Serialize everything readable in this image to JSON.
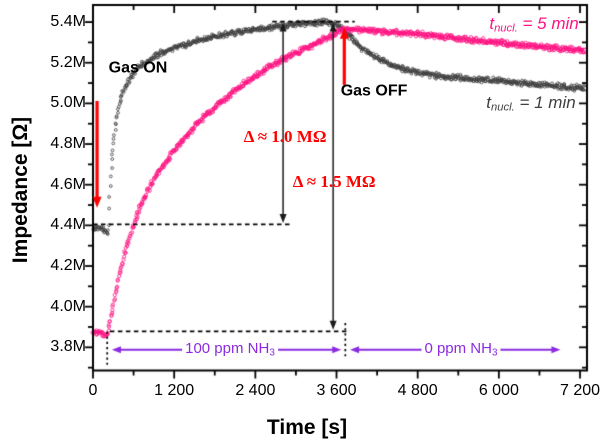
{
  "chart_data": {
    "type": "scatter",
    "title": "",
    "xlabel": "Time [s]",
    "ylabel": "Impedance [Ω]",
    "xlim": [
      0,
      7303
    ],
    "ylim": [
      3.686,
      5.484
    ],
    "grid": false,
    "x_ticks": {
      "values": [
        0,
        1200,
        2400,
        3600,
        4800,
        6000,
        7200
      ],
      "labels": [
        "0",
        "1 200",
        "2 400",
        "3 600",
        "4 800",
        "6 000",
        "7 200"
      ],
      "minor": [
        600,
        1800,
        3000,
        4200,
        5400,
        6600
      ]
    },
    "y_ticks": {
      "values": [
        3.8,
        4.0,
        4.2,
        4.4,
        4.6,
        4.8,
        5.0,
        5.2,
        5.4
      ],
      "labels": [
        "3.8M",
        "4.0M",
        "4.2M",
        "4.4M",
        "4.6M",
        "4.8M",
        "5.0M",
        "5.2M",
        "5.4M"
      ],
      "minor": [
        3.7,
        3.9,
        4.1,
        4.3,
        4.5,
        4.7,
        4.9,
        5.1,
        5.3
      ]
    },
    "units": {
      "impedance": "MΩ",
      "time": "s"
    },
    "series": [
      {
        "name": "t_nucl. = 1 min",
        "color": "#3F3F3F",
        "marker": "open-circle",
        "points": [
          [
            0,
            4.385
          ],
          [
            100,
            4.384
          ],
          [
            160,
            4.38
          ],
          [
            200,
            4.37
          ],
          [
            215,
            4.355
          ],
          [
            230,
            4.4
          ],
          [
            245,
            4.52
          ],
          [
            260,
            4.62
          ],
          [
            280,
            4.72
          ],
          [
            305,
            4.81
          ],
          [
            335,
            4.89
          ],
          [
            370,
            4.96
          ],
          [
            410,
            5.02
          ],
          [
            460,
            5.07
          ],
          [
            520,
            5.11
          ],
          [
            590,
            5.145
          ],
          [
            670,
            5.175
          ],
          [
            760,
            5.2
          ],
          [
            860,
            5.22
          ],
          [
            980,
            5.243
          ],
          [
            1120,
            5.263
          ],
          [
            1280,
            5.282
          ],
          [
            1450,
            5.3
          ],
          [
            1650,
            5.318
          ],
          [
            1850,
            5.332
          ],
          [
            2050,
            5.345
          ],
          [
            2250,
            5.357
          ],
          [
            2450,
            5.367
          ],
          [
            2650,
            5.377
          ],
          [
            2850,
            5.385
          ],
          [
            3050,
            5.391
          ],
          [
            3250,
            5.396
          ],
          [
            3400,
            5.398
          ],
          [
            3550,
            5.392
          ],
          [
            3620,
            5.386
          ],
          [
            3700,
            5.36
          ],
          [
            3800,
            5.33
          ],
          [
            3900,
            5.295
          ],
          [
            4000,
            5.265
          ],
          [
            4100,
            5.243
          ],
          [
            4250,
            5.215
          ],
          [
            4400,
            5.19
          ],
          [
            4550,
            5.172
          ],
          [
            4750,
            5.155
          ],
          [
            4950,
            5.143
          ],
          [
            5150,
            5.134
          ],
          [
            5350,
            5.128
          ],
          [
            5550,
            5.122
          ],
          [
            5750,
            5.117
          ],
          [
            5950,
            5.112
          ],
          [
            6150,
            5.106
          ],
          [
            6350,
            5.1
          ],
          [
            6550,
            5.094
          ],
          [
            6750,
            5.088
          ],
          [
            6950,
            5.082
          ],
          [
            7150,
            5.077
          ],
          [
            7260,
            5.074
          ]
        ]
      },
      {
        "name": "t_nucl. = 5 min",
        "color": "#FF1483",
        "marker": "open-circle",
        "points": [
          [
            0,
            3.872
          ],
          [
            80,
            3.871
          ],
          [
            130,
            3.868
          ],
          [
            180,
            3.853
          ],
          [
            210,
            3.865
          ],
          [
            240,
            3.91
          ],
          [
            280,
            3.97
          ],
          [
            320,
            4.04
          ],
          [
            360,
            4.11
          ],
          [
            410,
            4.18
          ],
          [
            460,
            4.25
          ],
          [
            520,
            4.32
          ],
          [
            580,
            4.385
          ],
          [
            650,
            4.45
          ],
          [
            730,
            4.515
          ],
          [
            820,
            4.575
          ],
          [
            920,
            4.635
          ],
          [
            1030,
            4.69
          ],
          [
            1150,
            4.745
          ],
          [
            1280,
            4.8
          ],
          [
            1420,
            4.855
          ],
          [
            1570,
            4.91
          ],
          [
            1730,
            4.96
          ],
          [
            1900,
            5.01
          ],
          [
            2070,
            5.055
          ],
          [
            2250,
            5.1
          ],
          [
            2430,
            5.14
          ],
          [
            2610,
            5.178
          ],
          [
            2790,
            5.212
          ],
          [
            2970,
            5.244
          ],
          [
            3150,
            5.273
          ],
          [
            3330,
            5.3
          ],
          [
            3480,
            5.325
          ],
          [
            3620,
            5.35
          ],
          [
            3720,
            5.362
          ],
          [
            3820,
            5.363
          ],
          [
            3950,
            5.36
          ],
          [
            4150,
            5.356
          ],
          [
            4350,
            5.352
          ],
          [
            4550,
            5.347
          ],
          [
            4750,
            5.342
          ],
          [
            4950,
            5.336
          ],
          [
            5150,
            5.329
          ],
          [
            5350,
            5.322
          ],
          [
            5550,
            5.314
          ],
          [
            5750,
            5.307
          ],
          [
            5950,
            5.3
          ],
          [
            6150,
            5.293
          ],
          [
            6350,
            5.286
          ],
          [
            6550,
            5.28
          ],
          [
            6750,
            5.274
          ],
          [
            6950,
            5.268
          ],
          [
            7150,
            5.262
          ],
          [
            7260,
            5.259
          ]
        ]
      }
    ],
    "dashed_lines": [
      {
        "name": "peak-level-dash",
        "style": "dash",
        "x1": 2650,
        "y1": 5.402,
        "x2": 3870,
        "y2": 5.402
      },
      {
        "name": "baseline-1min-dash",
        "style": "dash",
        "x1": 0,
        "y1": 4.405,
        "x2": 2950,
        "y2": 4.405
      },
      {
        "name": "baseline-5min-dash",
        "style": "dash",
        "x1": 250,
        "y1": 3.878,
        "x2": 3800,
        "y2": 3.878
      },
      {
        "name": "gas-on-time-dash",
        "style": "dot",
        "x1": 210,
        "y1": 3.878,
        "x2": 210,
        "y2": 3.7
      },
      {
        "name": "gas-off-time-dash",
        "style": "dot",
        "x1": 3730,
        "y1": 3.92,
        "x2": 3730,
        "y2": 3.745
      }
    ],
    "arrows": [
      {
        "name": "gas-on-arrow",
        "color": "#FF0000",
        "width": 3.2,
        "heads": "end",
        "x1": 60,
        "y1": 5.012,
        "x2": 60,
        "y2": 4.486
      },
      {
        "name": "gas-off-arrow",
        "color": "#FF0000",
        "width": 3.2,
        "heads": "end",
        "x1": 3715,
        "y1": 5.09,
        "x2": 3715,
        "y2": 5.372
      },
      {
        "name": "delta-1-arrow",
        "color": "#1A1A1A",
        "width": 1.5,
        "heads": "both",
        "x1": 2810,
        "y1": 5.398,
        "x2": 2810,
        "y2": 4.412
      },
      {
        "name": "delta-2-arrow",
        "color": "#1A1A1A",
        "width": 1.5,
        "heads": "both",
        "x1": 3550,
        "y1": 5.398,
        "x2": 3550,
        "y2": 3.886
      },
      {
        "name": "nh3-100-arrow",
        "color": "#8A2BE2",
        "width": 1.8,
        "heads": "both",
        "x1": 280,
        "y1": 3.788,
        "x2": 3670,
        "y2": 3.788
      },
      {
        "name": "nh3-0-arrow",
        "color": "#8A2BE2",
        "width": 1.8,
        "heads": "both",
        "x1": 3800,
        "y1": 3.788,
        "x2": 6910,
        "y2": 3.788
      }
    ],
    "labels": {
      "gas_on": {
        "text": "Gas ON",
        "x": 665,
        "y": 5.169,
        "color": "#000000"
      },
      "gas_off": {
        "text": "Gas OFF",
        "x": 4155,
        "y": 5.055,
        "color": "#000000"
      },
      "delta_1": {
        "text": "Δ ≈ 1.0 MΩ",
        "x": 2840,
        "y": 4.833,
        "color": "#FF0000"
      },
      "delta_2": {
        "text": "Δ ≈ 1.5 MΩ",
        "x": 3565,
        "y": 4.611,
        "color": "#FF0000"
      },
      "legend_5min": {
        "pre": "t",
        "sub": "nucl.",
        "post": " = 5 min",
        "x": 6520,
        "y": 5.388,
        "color": "#FF1483"
      },
      "legend_1min": {
        "pre": "t",
        "sub": "nucl.",
        "post": " = 1 min",
        "x": 6475,
        "y": 4.995,
        "color": "#3F3F3F"
      },
      "nh3_100": {
        "pre": "100 ppm NH",
        "sub": "3",
        "x": 2025,
        "y": 3.788,
        "color": "#8A2BE2"
      },
      "nh3_0": {
        "pre": "0 ppm NH",
        "sub": "3",
        "x": 5440,
        "y": 3.788,
        "color": "#8A2BE2"
      }
    },
    "axis_color": "#000000"
  }
}
